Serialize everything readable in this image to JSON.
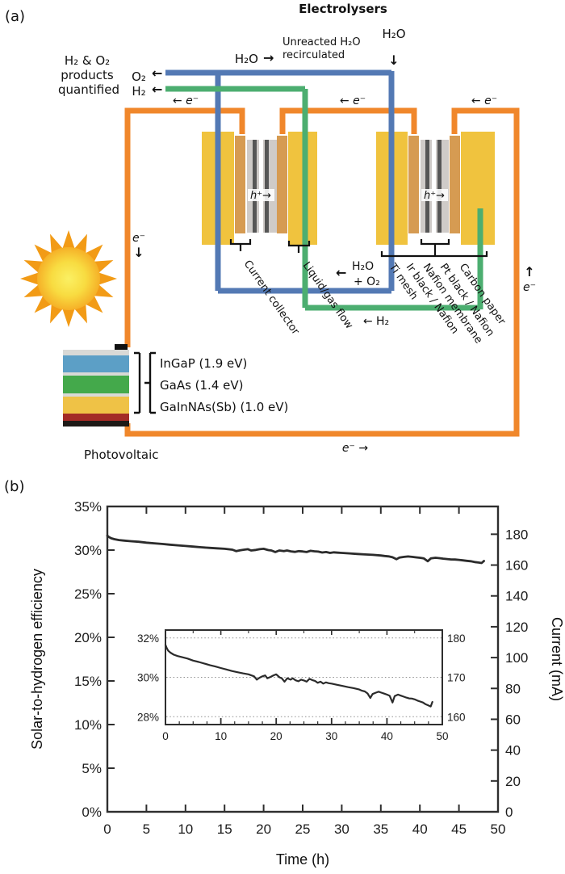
{
  "panel_a": {
    "label": "(a)",
    "title": "Electrolysers",
    "labels": {
      "h2o_in_left": "H₂O",
      "h2o_in_arrow": "→",
      "unreacted_line1": "Unreacted H₂O",
      "unreacted_line2": "recirculated",
      "h2o_feed": "H₂O",
      "h2o_feed_arrow": "↓",
      "products_line1": "H₂ & O₂",
      "products_line2": "products",
      "products_line3": "quantified",
      "o2_out": "O₂",
      "o2_out_arrow": "←",
      "h2_out": "H₂",
      "h2_out_arrow": "←",
      "e_left": "← e⁻",
      "e_mid": "← e⁻",
      "e_right": "← e⁻",
      "e_wire_left": "e⁻",
      "e_wire_left_arrow": "↓",
      "e_wire_right_arrow": "↑",
      "e_wire_right": "e⁻",
      "e_bottom": "e⁻ →",
      "h_plus_1": "h⁺→",
      "h_plus_2": "h⁺→",
      "water_return_arrow": "←",
      "water_return_line1": "H₂O",
      "water_return_line2": "+ O₂",
      "h2_return": "← H₂",
      "photovoltaic": "Photovoltaic"
    },
    "cell_part_labels": [
      "Current collector",
      "Liquid/gas flow"
    ],
    "mea_labels": [
      "Ti mesh",
      "Ir black / Nafion",
      "Nafion membrane",
      "Pt black / Nafion",
      "Carbon paper"
    ],
    "pv_layers": [
      "InGaP (1.9 eV)",
      "GaAs (1.4 eV)",
      "GaInNAs(Sb) (1.0 eV)"
    ],
    "colors": {
      "wire": "#F0872B",
      "water_pipe": "#5379B4",
      "h2_pipe": "#4CAE70",
      "electrode": "#F0C33E",
      "flow_plate": "#D69B52",
      "mea_gray": "#CFCBC8",
      "mea_stripe": "#565656",
      "pv_ingap": "#5C9FC6",
      "pv_gaas": "#44A94B",
      "pv_gainnas": "#EFC246",
      "pv_back": "#A32B26",
      "pv_substrate": "#1E1A17",
      "sun_edge": "#F29B16",
      "curve": "#2B2B2B"
    }
  },
  "panel_b": {
    "label": "(b)",
    "xlabel": "Time (h)",
    "ylabel_left": "Solar-to-hydrogen efficiency",
    "ylabel_right": "Current (mA)"
  },
  "chart_data": [
    {
      "type": "line",
      "title": "",
      "xlabel": "Time (h)",
      "ylabel": "Solar-to-hydrogen efficiency",
      "ylabel_right": "Current (mA)",
      "xlim": [
        0,
        50
      ],
      "ylim": [
        0,
        35
      ],
      "ylim_right": [
        0,
        198
      ],
      "x_ticks": [
        0,
        5,
        10,
        15,
        20,
        25,
        30,
        35,
        40,
        45,
        50
      ],
      "y_ticks_percent": [
        0,
        5,
        10,
        15,
        20,
        25,
        30,
        35
      ],
      "y_ticks_right": [
        0,
        20,
        40,
        60,
        80,
        100,
        120,
        140,
        160,
        180
      ],
      "grid": false,
      "legend": null,
      "notes": "Single trace reads on both axes: ~31.5% / ~178 mA at t=0, declining to ~28.6% / ~161 mA at t=48 h",
      "series": [
        {
          "name": "Solar-to-hydrogen efficiency (%)",
          "points": [
            [
              0,
              31.65
            ],
            [
              0.2,
              31.5
            ],
            [
              0.5,
              31.35
            ],
            [
              0.9,
              31.25
            ],
            [
              1.5,
              31.15
            ],
            [
              2.2,
              31.08
            ],
            [
              3,
              31.02
            ],
            [
              4,
              30.95
            ],
            [
              5,
              30.85
            ],
            [
              6,
              30.78
            ],
            [
              7,
              30.7
            ],
            [
              8,
              30.62
            ],
            [
              9,
              30.55
            ],
            [
              10,
              30.47
            ],
            [
              11,
              30.4
            ],
            [
              12,
              30.32
            ],
            [
              13,
              30.26
            ],
            [
              14,
              30.2
            ],
            [
              15,
              30.15
            ],
            [
              16,
              30.05
            ],
            [
              16.5,
              29.88
            ],
            [
              17,
              29.98
            ],
            [
              17.5,
              30.05
            ],
            [
              18,
              30.1
            ],
            [
              18.4,
              29.95
            ],
            [
              19,
              30.02
            ],
            [
              19.5,
              30.1
            ],
            [
              20,
              30.15
            ],
            [
              20.6,
              30.0
            ],
            [
              21,
              29.95
            ],
            [
              21.5,
              29.78
            ],
            [
              22,
              29.95
            ],
            [
              22.6,
              29.88
            ],
            [
              23,
              29.95
            ],
            [
              23.5,
              29.85
            ],
            [
              24,
              29.8
            ],
            [
              24.5,
              29.88
            ],
            [
              25,
              29.84
            ],
            [
              25.5,
              29.78
            ],
            [
              26,
              29.92
            ],
            [
              26.5,
              29.86
            ],
            [
              27,
              29.82
            ],
            [
              27.5,
              29.72
            ],
            [
              28,
              29.78
            ],
            [
              28.5,
              29.68
            ],
            [
              29,
              29.74
            ],
            [
              29.5,
              29.7
            ],
            [
              30,
              29.68
            ],
            [
              31,
              29.62
            ],
            [
              32,
              29.56
            ],
            [
              33,
              29.5
            ],
            [
              34,
              29.45
            ],
            [
              35,
              29.38
            ],
            [
              35.5,
              29.32
            ],
            [
              36,
              29.28
            ],
            [
              36.5,
              29.18
            ],
            [
              37,
              28.95
            ],
            [
              37.4,
              29.15
            ],
            [
              38,
              29.22
            ],
            [
              38.5,
              29.27
            ],
            [
              39,
              29.22
            ],
            [
              39.5,
              29.17
            ],
            [
              40,
              29.12
            ],
            [
              40.5,
              29.06
            ],
            [
              41,
              28.72
            ],
            [
              41.4,
              29.05
            ],
            [
              42,
              29.12
            ],
            [
              42.5,
              29.07
            ],
            [
              43,
              29.02
            ],
            [
              43.5,
              28.97
            ],
            [
              44,
              28.93
            ],
            [
              44.5,
              28.92
            ],
            [
              45,
              28.88
            ],
            [
              45.5,
              28.82
            ],
            [
              46,
              28.77
            ],
            [
              46.5,
              28.72
            ],
            [
              47,
              28.63
            ],
            [
              47.5,
              28.57
            ],
            [
              47.9,
              28.52
            ],
            [
              48.2,
              28.75
            ]
          ]
        }
      ]
    },
    {
      "type": "line",
      "inset": true,
      "xlim": [
        0,
        50
      ],
      "ylim": [
        27.6,
        32.4
      ],
      "x_ticks": [
        0,
        10,
        20,
        30,
        40,
        50
      ],
      "gridlines_percent": [
        32,
        30,
        28
      ],
      "y_labels_left": [
        "32%",
        "30%",
        "28%"
      ],
      "y_labels_right": [
        "180",
        "170",
        "160"
      ],
      "grid": "dotted horizontal at 28%, 30%, 32%",
      "series_note": "same data as main panel (magnified view)"
    }
  ]
}
